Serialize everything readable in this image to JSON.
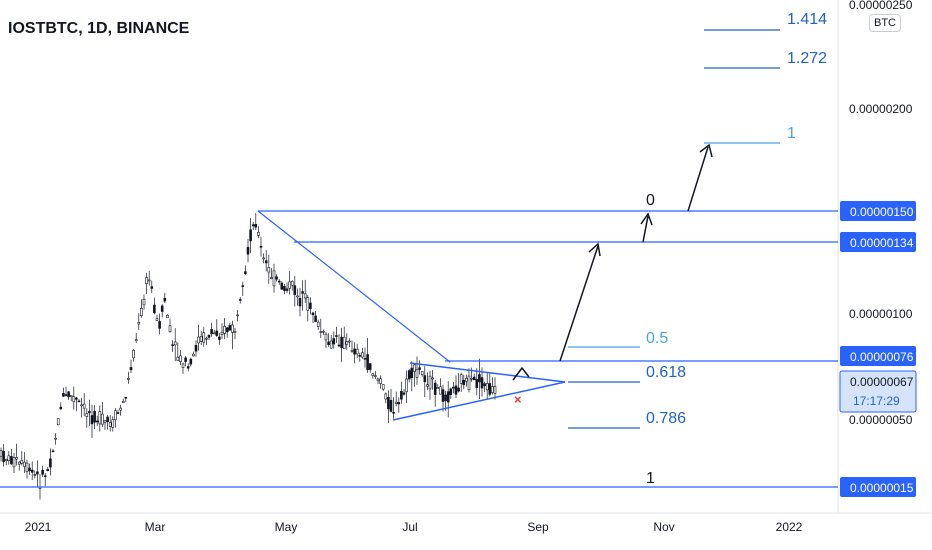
{
  "header": {
    "symbol_title": "IOSTBTC, 1D, BINANCE",
    "currency": "BTC"
  },
  "colors": {
    "line": "#2962ff",
    "fib": "#1e63c8",
    "fib_light": "#4aa3e8",
    "up": "#131722",
    "bg": "#ffffff",
    "badge": "#2962ff"
  },
  "chart_data": {
    "type": "candlestick",
    "y_axis_ticks": [
      "0.00000250",
      "0.00000200",
      "0.00000100",
      "0.00000050"
    ],
    "x_axis_ticks": [
      "2021",
      "Mar",
      "May",
      "Jul",
      "Sep",
      "Nov",
      "2022"
    ],
    "ylim": [
      5e-08,
      2.5e-06
    ],
    "price_badges": [
      "0.00000150",
      "0.00000134",
      "0.00000076",
      "0.00000067",
      "0.00000015"
    ],
    "current_price": "0.00000067",
    "countdown": "17:17:29",
    "fib_levels": [
      {
        "label": "1.414"
      },
      {
        "label": "1.272"
      },
      {
        "label": "1"
      },
      {
        "label": "0"
      },
      {
        "label": "0.5"
      },
      {
        "label": "0.618"
      },
      {
        "label": "0.786"
      },
      {
        "label": "1"
      }
    ],
    "marker": "×"
  }
}
